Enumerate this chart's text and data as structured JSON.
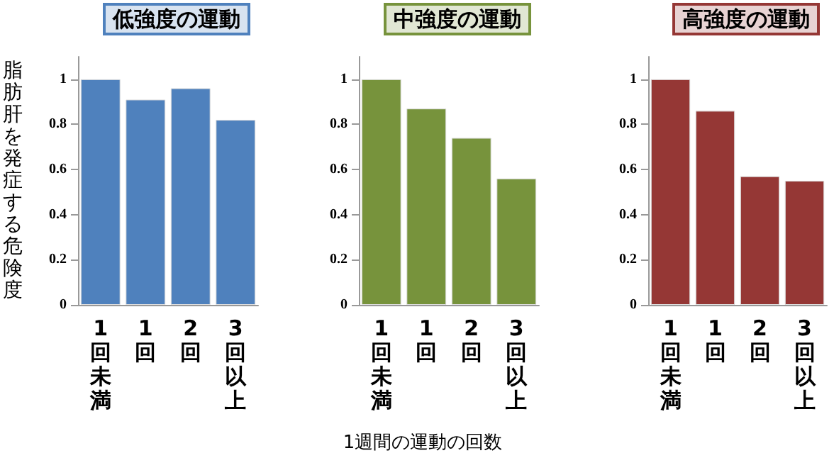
{
  "chart_data": [
    {
      "type": "bar",
      "title": "低強度の運動",
      "ylabel": "脂肪肝を発症する危険度",
      "categories": [
        "1回未満",
        "1回",
        "2回",
        "3回以上"
      ],
      "values": [
        1,
        0.91,
        0.96,
        0.82
      ],
      "color": "#4f81bd",
      "ylim": [
        0,
        1.1
      ],
      "yticks": [
        0,
        0.2,
        0.4,
        0.6,
        0.8,
        1
      ],
      "grid": false
    },
    {
      "type": "bar",
      "title": "中強度の運動",
      "xlabel": "1週間の運動の回数",
      "categories": [
        "1回未満",
        "1回",
        "2回",
        "3回以上"
      ],
      "values": [
        1,
        0.87,
        0.74,
        0.56
      ],
      "color": "#77933c",
      "ylim": [
        0,
        1.1
      ],
      "yticks": [
        0,
        0.2,
        0.4,
        0.6,
        0.8,
        1
      ],
      "grid": false
    },
    {
      "type": "bar",
      "title": "高強度の運動",
      "categories": [
        "1回未満",
        "1回",
        "2回",
        "3回以上"
      ],
      "values": [
        1,
        0.86,
        0.57,
        0.55
      ],
      "color": "#953735",
      "ylim": [
        0,
        1.1
      ],
      "yticks": [
        0,
        0.2,
        0.4,
        0.6,
        0.8,
        1
      ],
      "grid": false
    }
  ]
}
